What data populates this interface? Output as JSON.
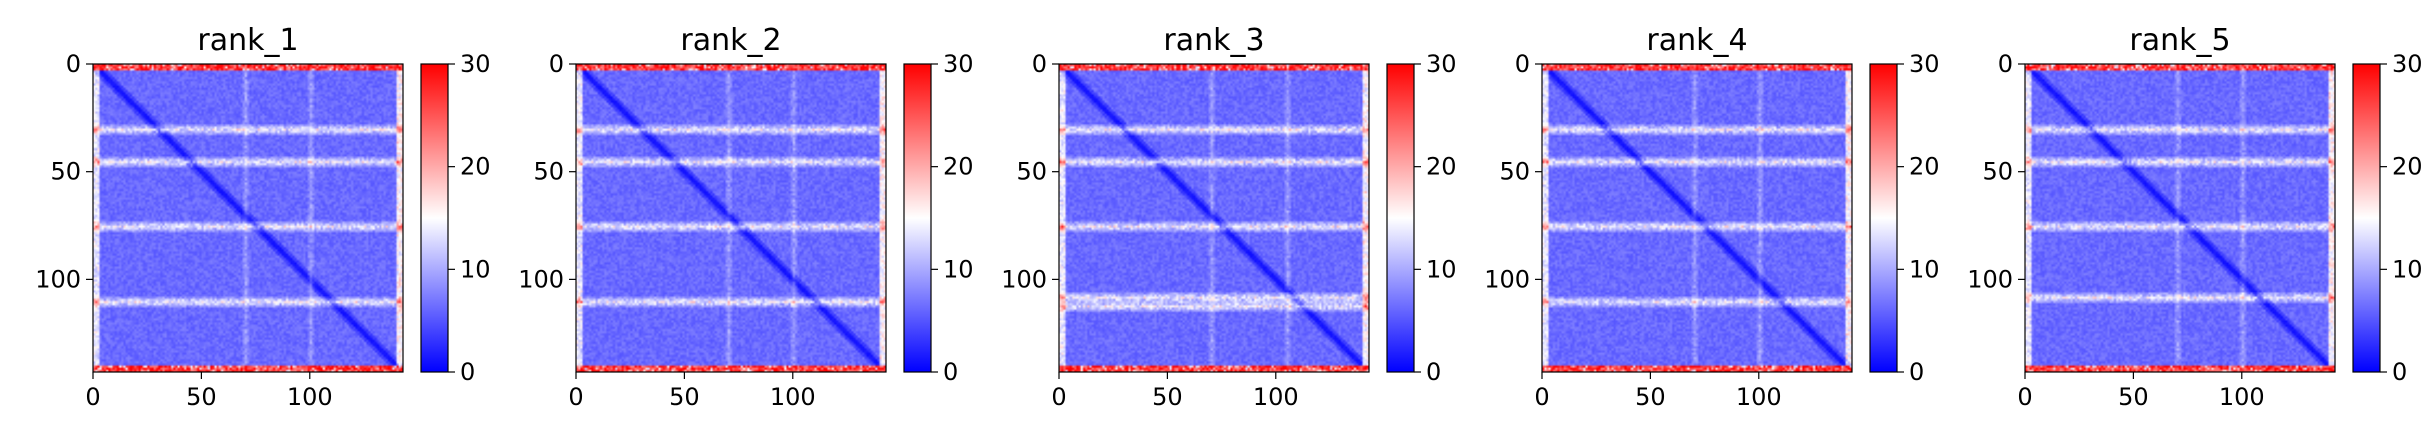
{
  "figure": {
    "panels": [
      {
        "title": "rank_1"
      },
      {
        "title": "rank_2"
      },
      {
        "title": "rank_3"
      },
      {
        "title": "rank_4"
      },
      {
        "title": "rank_5"
      }
    ]
  },
  "chart_data": [
    {
      "type": "heatmap",
      "title": "rank_1",
      "n": 143,
      "xlim": [
        0,
        143
      ],
      "ylim": [
        143,
        0
      ],
      "xticks": [
        0,
        50,
        100
      ],
      "yticks": [
        0,
        50,
        100
      ],
      "colorbar": {
        "vmin": 0,
        "vmax": 30,
        "ticks": [
          0,
          10,
          20,
          30
        ],
        "colormap": "bwr",
        "colors": [
          "#0000ff",
          "#ffffff",
          "#ff0000"
        ]
      },
      "features": {
        "edge_rows_high": [
          0,
          1,
          2,
          140,
          141,
          142
        ],
        "stripe_rows": [
          30,
          45,
          75,
          110
        ],
        "stripe_cols": [
          70,
          100
        ],
        "diagonal_low": true
      },
      "grid": false
    },
    {
      "type": "heatmap",
      "title": "rank_2",
      "n": 143,
      "xlim": [
        0,
        143
      ],
      "ylim": [
        143,
        0
      ],
      "xticks": [
        0,
        50,
        100
      ],
      "yticks": [
        0,
        50,
        100
      ],
      "colorbar": {
        "vmin": 0,
        "vmax": 30,
        "ticks": [
          0,
          10,
          20,
          30
        ],
        "colormap": "bwr",
        "colors": [
          "#0000ff",
          "#ffffff",
          "#ff0000"
        ]
      },
      "features": {
        "edge_rows_high": [
          0,
          1,
          2,
          140,
          141,
          142
        ],
        "stripe_rows": [
          30,
          45,
          75,
          110
        ],
        "stripe_cols": [
          70,
          100
        ],
        "diagonal_low": true
      },
      "grid": false
    },
    {
      "type": "heatmap",
      "title": "rank_3",
      "n": 143,
      "xlim": [
        0,
        143
      ],
      "ylim": [
        143,
        0
      ],
      "xticks": [
        0,
        50,
        100
      ],
      "yticks": [
        0,
        50,
        100
      ],
      "colorbar": {
        "vmin": 0,
        "vmax": 30,
        "ticks": [
          0,
          10,
          20,
          30
        ],
        "colormap": "bwr",
        "colors": [
          "#0000ff",
          "#ffffff",
          "#ff0000"
        ]
      },
      "features": {
        "edge_rows_high": [
          0,
          1,
          2,
          140,
          141,
          142
        ],
        "stripe_rows": [
          30,
          45,
          75,
          108,
          112
        ],
        "stripe_cols": [
          70,
          105
        ],
        "diagonal_low": true
      },
      "grid": false
    },
    {
      "type": "heatmap",
      "title": "rank_4",
      "n": 143,
      "xlim": [
        0,
        143
      ],
      "ylim": [
        143,
        0
      ],
      "xticks": [
        0,
        50,
        100
      ],
      "yticks": [
        0,
        50,
        100
      ],
      "colorbar": {
        "vmin": 0,
        "vmax": 30,
        "ticks": [
          0,
          10,
          20,
          30
        ],
        "colormap": "bwr",
        "colors": [
          "#0000ff",
          "#ffffff",
          "#ff0000"
        ]
      },
      "features": {
        "edge_rows_high": [
          0,
          1,
          2,
          140,
          141,
          142
        ],
        "stripe_rows": [
          30,
          45,
          75,
          110
        ],
        "stripe_cols": [
          70,
          100
        ],
        "diagonal_low": true
      },
      "grid": false
    },
    {
      "type": "heatmap",
      "title": "rank_5",
      "n": 143,
      "xlim": [
        0,
        143
      ],
      "ylim": [
        143,
        0
      ],
      "xticks": [
        0,
        50,
        100
      ],
      "yticks": [
        0,
        50,
        100
      ],
      "colorbar": {
        "vmin": 0,
        "vmax": 30,
        "ticks": [
          0,
          10,
          20,
          30
        ],
        "colormap": "bwr",
        "colors": [
          "#0000ff",
          "#ffffff",
          "#ff0000"
        ]
      },
      "features": {
        "edge_rows_high": [
          0,
          1,
          2,
          140,
          141,
          142
        ],
        "stripe_rows": [
          30,
          45,
          75,
          108
        ],
        "stripe_cols": [
          70,
          100
        ],
        "diagonal_low": true
      },
      "grid": false
    }
  ]
}
